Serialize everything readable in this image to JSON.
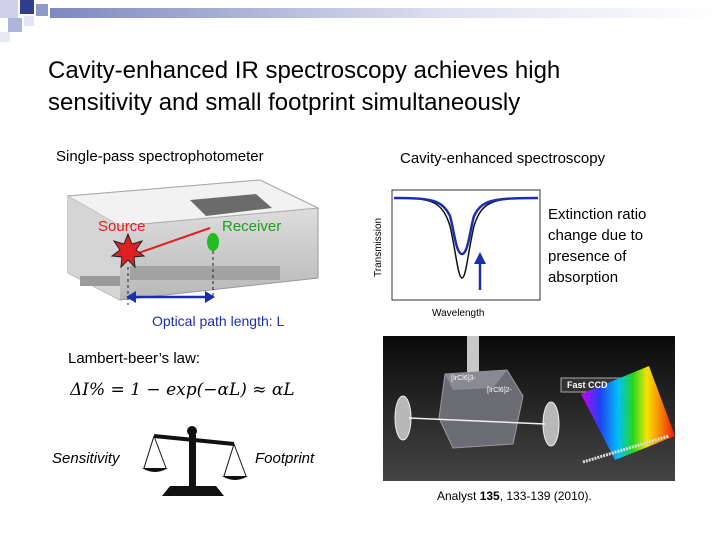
{
  "slide": {
    "title_line1": "Cavity-enhanced IR spectroscopy achieves high",
    "title_line2": "sensitivity and small footprint simultaneously"
  },
  "left": {
    "heading": "Single-pass spectrophotometer",
    "source_label": "Source",
    "receiver_label": "Receiver",
    "path_label": "Optical path length: L",
    "law_label": "Lambert-beer’s law:",
    "equation": {
      "lhs": "ΔI% = 1 − exp(−αL) ≈ αL"
    },
    "sensitivity_label": "Sensitivity",
    "footprint_label": "Footprint"
  },
  "right": {
    "heading": "Cavity-enhanced spectroscopy",
    "ylabel": "Transmission",
    "xlabel": "Wavelength",
    "annotation_l1": "Extinction ratio",
    "annotation_l2": "change due to",
    "annotation_l3": "presence of",
    "annotation_l4": "absorption",
    "photo_text_1": "[IrCl6]3-",
    "photo_text_2": "[IrCl6]2-",
    "photo_text_ccd": "Fast CCD",
    "citation_prefix": "Analyst ",
    "citation_volume": "135",
    "citation_rest": ", 133-139 (2010)."
  },
  "colors": {
    "deco_light": "#d0d4e8",
    "deco_mid": "#9aa3cf",
    "deco_dark": "#2f3e8f",
    "path_arrow": "#1a2fb0",
    "beam": "#e02020",
    "receiver": "#22bb22"
  }
}
